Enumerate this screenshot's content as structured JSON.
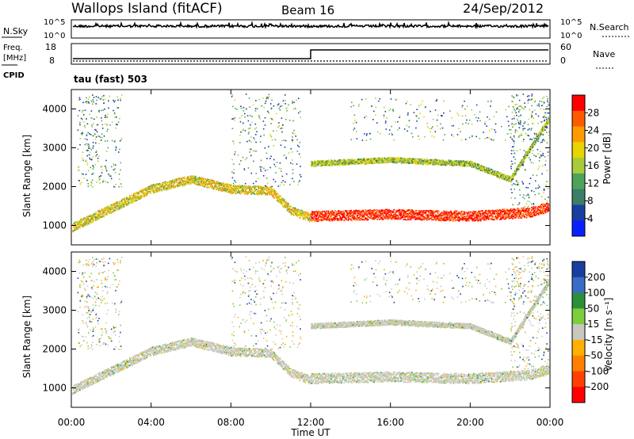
{
  "header": {
    "site": "Wallops Island (fitACF)",
    "beam": "Beam 16",
    "date": "24/Sep/2012"
  },
  "noise_panel": {
    "left_label": "N.Sky",
    "left_top_tick": "10^5",
    "left_bottom_tick": "10^0",
    "right_label": "N.Search",
    "right_top_tick": "10^5",
    "right_bottom_tick": "10^0"
  },
  "freq_panel": {
    "left_label_line1": "Freq.",
    "left_label_line2": "[MHz]",
    "left_top_tick": "18",
    "left_bottom_tick": "8",
    "right_label": "Nave",
    "right_top_tick": "60",
    "right_bottom_tick": "0",
    "cpid_label": "CPID",
    "cpid_text": "tau (fast) 503"
  },
  "x_axis": {
    "label": "Time UT",
    "ticks": [
      "00:00",
      "04:00",
      "08:00",
      "12:00",
      "16:00",
      "20:00",
      "00:00"
    ]
  },
  "chart_data": [
    {
      "type": "heatmap",
      "name": "power",
      "ylabel": "Slant Range [km]",
      "y_ticks": [
        "1000",
        "2000",
        "3000",
        "4000"
      ],
      "ylim": [
        500,
        4500
      ],
      "xlim_hours": [
        0,
        24
      ],
      "colorbar_label": "Power [dB]",
      "colorbar_ticks": [
        "28",
        "24",
        "20",
        "16",
        "12",
        "8",
        "4"
      ],
      "colorbar_colors": [
        "#ff0000",
        "#ff5a00",
        "#ff9a00",
        "#e8d400",
        "#a8cc3a",
        "#4ea35a",
        "#3b7f68",
        "#1a3ea0",
        "#0a20ff"
      ],
      "echo_bands": [
        {
          "label": "main band",
          "points_hours_km": [
            [
              0,
              950
            ],
            [
              2,
              1450
            ],
            [
              4,
              1950
            ],
            [
              6,
              2200
            ],
            [
              8,
              1950
            ],
            [
              10,
              1900
            ],
            [
              11,
              1400
            ],
            [
              12,
              1200
            ]
          ]
        },
        {
          "label": "after 12 UT lower",
          "points_hours_km": [
            [
              12,
              1250
            ],
            [
              16,
              1300
            ],
            [
              20,
              1250
            ],
            [
              23,
              1350
            ],
            [
              24,
              1500
            ]
          ]
        },
        {
          "label": "after 12 UT upper",
          "points_hours_km": [
            [
              12,
              2600
            ],
            [
              16,
              2700
            ],
            [
              20,
              2600
            ],
            [
              22,
              2200
            ],
            [
              24,
              3800
            ]
          ]
        }
      ]
    },
    {
      "type": "heatmap",
      "name": "velocity",
      "ylabel": "Slant Range [km]",
      "y_ticks": [
        "1000",
        "2000",
        "3000",
        "4000"
      ],
      "ylim": [
        500,
        4500
      ],
      "xlim_hours": [
        0,
        24
      ],
      "colorbar_label": "Velocity [m s⁻¹]",
      "colorbar_ticks": [
        "200",
        "100",
        "50",
        "15",
        "-15",
        "-50",
        "-100",
        "-200"
      ],
      "colorbar_colors": [
        "#1a3ea0",
        "#3a6cc8",
        "#2e8f3a",
        "#7ccf3a",
        "#c8c8c0",
        "#ffb000",
        "#ff8000",
        "#ff4000",
        "#ff0000"
      ]
    }
  ]
}
